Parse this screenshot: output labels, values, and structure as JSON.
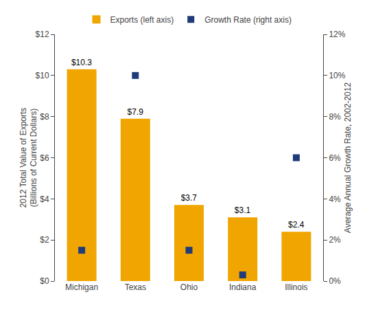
{
  "chart_data": {
    "type": "bar",
    "categories": [
      "Michigan",
      "Texas",
      "Ohio",
      "Indiana",
      "Illinois"
    ],
    "series": [
      {
        "name": "Exports (left axis)",
        "type": "bar",
        "color": "#F0A500",
        "values": [
          10.3,
          7.9,
          3.7,
          3.1,
          2.4
        ],
        "value_labels": [
          "$10.3",
          "$7.9",
          "$3.7",
          "$3.1",
          "$2.4"
        ]
      },
      {
        "name": "Growth Rate (right axis)",
        "type": "scatter",
        "marker": "square",
        "color": "#1F3B7A",
        "values": [
          0.015,
          0.1,
          0.015,
          0.003,
          0.06
        ],
        "axis": "y2"
      }
    ],
    "ylabel": "2012 Total Value of Exports\n(Billions of Current Dollars)",
    "y2label": "Average Annual Growth Rate, 2002-2012",
    "ylim": [
      0,
      12
    ],
    "yticks": [
      {
        "value": 0,
        "label": "$0"
      },
      {
        "value": 2,
        "label": "$2"
      },
      {
        "value": 4,
        "label": "$4"
      },
      {
        "value": 6,
        "label": "$6"
      },
      {
        "value": 8,
        "label": "$8"
      },
      {
        "value": 10,
        "label": "$10"
      },
      {
        "value": 12,
        "label": "$12"
      }
    ],
    "y2lim": [
      0,
      0.12
    ],
    "y2ticks": [
      {
        "value": 0,
        "label": "0%"
      },
      {
        "value": 0.02,
        "label": "2%"
      },
      {
        "value": 0.04,
        "label": "4%"
      },
      {
        "value": 0.06,
        "label": "6%"
      },
      {
        "value": 0.08,
        "label": "8%"
      },
      {
        "value": 0.1,
        "label": "10%"
      },
      {
        "value": 0.12,
        "label": "12%"
      }
    ],
    "grid": false,
    "legend": "top",
    "data_labels": true
  }
}
